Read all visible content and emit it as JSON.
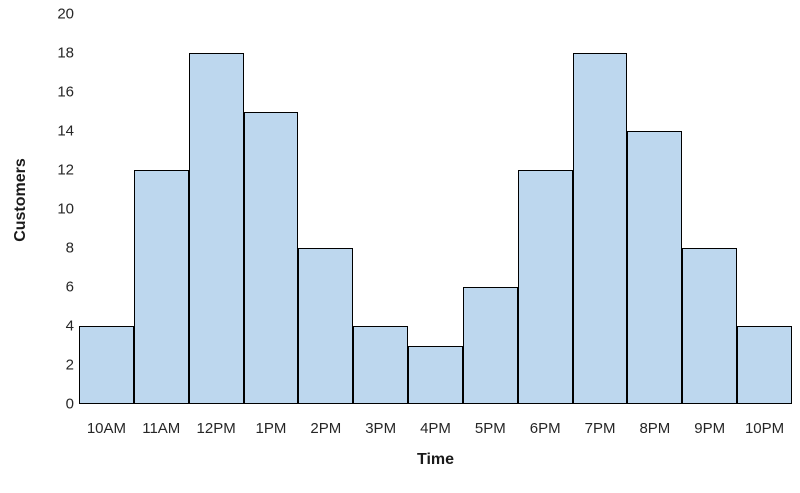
{
  "chart_data": {
    "type": "bar",
    "title": "",
    "xlabel": "Time",
    "ylabel": "Customers",
    "categories": [
      "10AM",
      "11AM",
      "12PM",
      "1PM",
      "2PM",
      "3PM",
      "4PM",
      "5PM",
      "6PM",
      "7PM",
      "8PM",
      "9PM",
      "10PM"
    ],
    "values": [
      4,
      12,
      18,
      15,
      8,
      4,
      3,
      6,
      12,
      18,
      14,
      8,
      4
    ],
    "ylim": [
      0,
      20
    ],
    "yticks": [
      0,
      2,
      4,
      6,
      8,
      10,
      12,
      14,
      16,
      18,
      20
    ],
    "grid": false,
    "legend": "none",
    "bar_style": "contiguous-histogram",
    "colors": {
      "bar_fill": "#BDD7EE",
      "bar_border": "#000000",
      "tick_text": "#262626",
      "title_text": "#1a1a1a",
      "background": "#ffffff"
    }
  }
}
